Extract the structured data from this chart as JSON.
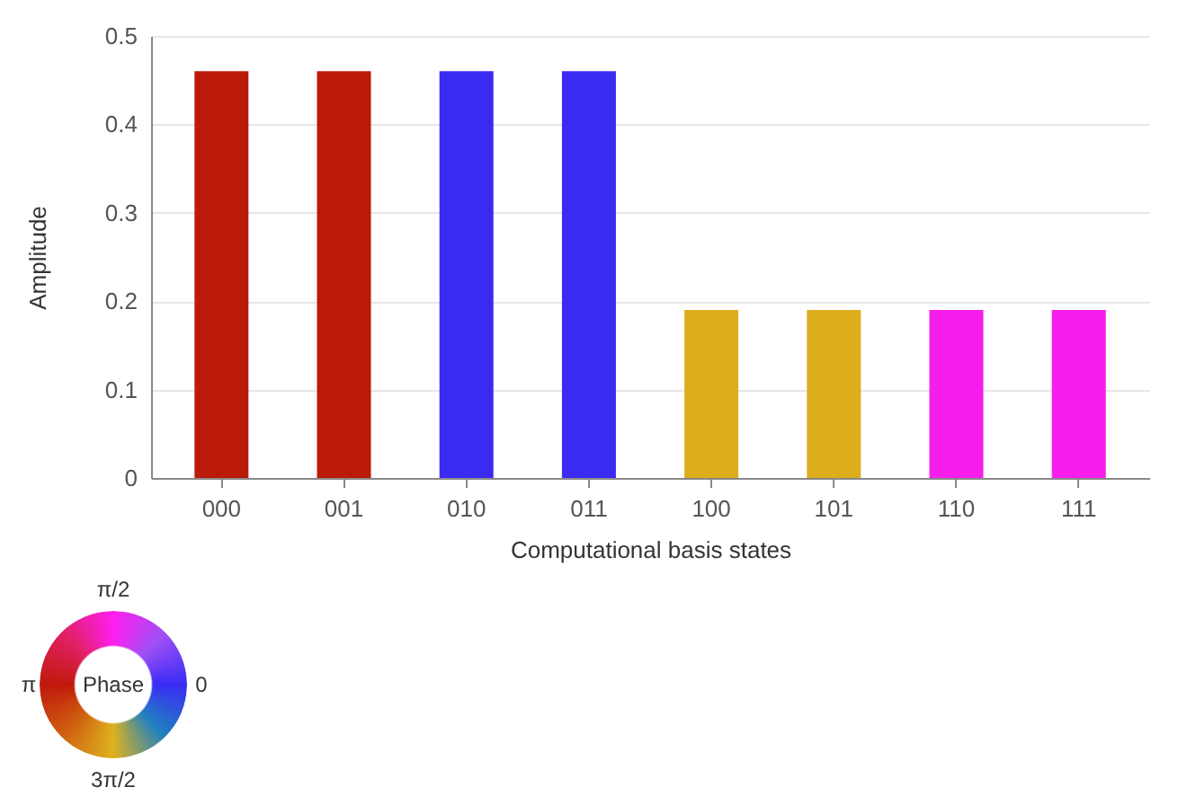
{
  "chart_data": {
    "type": "bar",
    "xlabel": "Computational basis states",
    "ylabel": "Amplitude",
    "categories": [
      "000",
      "001",
      "010",
      "011",
      "100",
      "101",
      "110",
      "111"
    ],
    "values": [
      0.46,
      0.46,
      0.46,
      0.46,
      0.19,
      0.19,
      0.19,
      0.19
    ],
    "colors": [
      "#bb1a0a",
      "#bb1a0a",
      "#3a2af2",
      "#3a2af2",
      "#dcad1c",
      "#dcad1c",
      "#f61ded",
      "#f61ded"
    ],
    "ylim": [
      0,
      0.5
    ],
    "yticks": [
      0,
      0.1,
      0.2,
      0.3,
      0.4,
      0.5
    ],
    "grid": "y",
    "annotations": [
      "π/2",
      "π",
      "Phase",
      "0",
      "3π/2"
    ]
  }
}
